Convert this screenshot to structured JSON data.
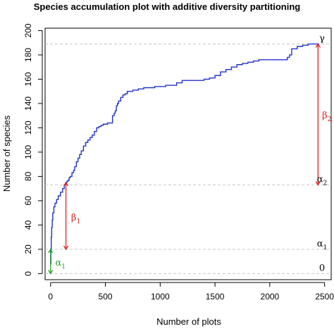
{
  "chart_data": {
    "type": "line",
    "title": "Species accumulation plot with additive diversity partitioning",
    "xlabel": "Number of plots",
    "ylabel": "Number of species",
    "xlim": [
      -50,
      2560
    ],
    "ylim": [
      -5,
      202
    ],
    "xticks": [
      "0",
      "500",
      "1000",
      "1500",
      "2000",
      "2500"
    ],
    "yticks": [
      "0",
      "20",
      "40",
      "60",
      "80",
      "100",
      "120",
      "140",
      "160",
      "180",
      "200"
    ],
    "grid": false,
    "series": [
      {
        "color": "#2233cc",
        "x": [
          1,
          3,
          6,
          10,
          15,
          20,
          30,
          40,
          55,
          70,
          90,
          110,
          125,
          140,
          150,
          160,
          170,
          180,
          195,
          210,
          220,
          235,
          250,
          265,
          280,
          300,
          320,
          340,
          360,
          380,
          400,
          420,
          440,
          460,
          480,
          500,
          520,
          540,
          560,
          565,
          580,
          590,
          600,
          610,
          620,
          640,
          660,
          680,
          700,
          750,
          800,
          850,
          900,
          950,
          1000,
          1050,
          1100,
          1150,
          1200,
          1250,
          1300,
          1350,
          1400,
          1450,
          1500,
          1550,
          1600,
          1650,
          1700,
          1750,
          1800,
          1850,
          1900,
          1950,
          2000,
          2050,
          2100,
          2150,
          2160,
          2180,
          2200,
          2250,
          2300,
          2350,
          2400,
          2450
        ],
        "y": [
          8,
          20,
          30,
          38,
          44,
          50,
          55,
          58,
          61,
          64,
          67,
          70,
          73,
          75,
          76,
          77,
          79,
          80,
          83,
          85,
          88,
          92,
          95,
          98,
          101,
          105,
          108,
          110,
          112,
          114,
          117,
          120,
          121,
          122,
          123,
          123,
          124,
          124,
          124,
          130,
          132,
          134,
          138,
          140,
          142,
          145,
          147,
          148,
          150,
          151,
          152,
          153,
          153,
          154,
          154,
          155,
          155,
          157,
          159,
          159,
          159,
          159,
          160,
          161,
          163,
          166,
          168,
          170,
          172,
          173,
          174,
          175,
          176,
          176,
          176,
          176,
          176,
          176,
          178,
          180,
          185,
          187,
          188,
          189,
          189,
          189
        ]
      }
    ],
    "reference_lines": [
      {
        "y": 189,
        "color": "#c8c8c8",
        "style": "dashed"
      },
      {
        "y": 73,
        "color": "#c8c8c8",
        "style": "dashed"
      },
      {
        "y": 20,
        "color": "#c8c8c8",
        "style": "dashed"
      },
      {
        "y": 0,
        "color": "#c8c8c8",
        "style": "dashed"
      }
    ],
    "annotations": {
      "right_labels": [
        {
          "y": 189,
          "symbol": "γ",
          "sub": ""
        },
        {
          "y": 73,
          "symbol": "α",
          "sub": "2"
        },
        {
          "y": 20,
          "symbol": "α",
          "sub": "1"
        },
        {
          "y": 0,
          "symbol": "0",
          "sub": ""
        }
      ],
      "arrows": [
        {
          "x": 0,
          "y_from": 0,
          "y_to": 20,
          "color": "#2a9d2a",
          "symbol": "α",
          "sub": "1",
          "label_x": 90,
          "label_y": 9
        },
        {
          "x": 140,
          "y_from": 20,
          "y_to": 75,
          "color": "#e02020",
          "symbol": "β",
          "sub": "1",
          "label_x": 230,
          "label_y": 46
        },
        {
          "x": 2440,
          "y_from": 73,
          "y_to": 189,
          "color": "#e02020",
          "symbol": "β",
          "sub": "2",
          "label_x": 2520,
          "label_y": 130
        }
      ]
    }
  }
}
